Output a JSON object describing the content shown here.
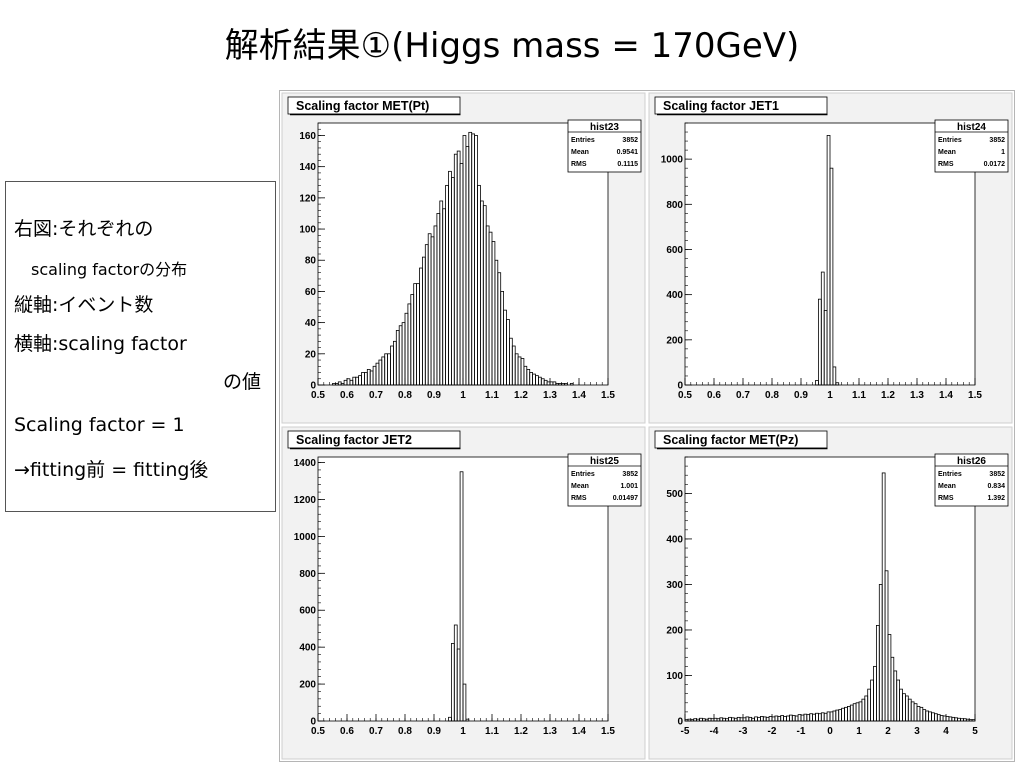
{
  "slide": {
    "title": "解析結果①(Higgs mass = 170GeV)",
    "notes": {
      "l1": "右図:それぞれの",
      "l2": "scaling factorの分布",
      "l3": "縦軸:イベント数",
      "l4": "横軸:scaling factor",
      "l5": "の値",
      "l6": "Scaling factor = 1",
      "l7": "→fitting前 = fitting後"
    }
  },
  "colors": {
    "pad_bg": "#f2f2f2",
    "frame_bg": "#ffffff",
    "line": "#000000",
    "canvas_bg": "#ffffff"
  },
  "chart_data": [
    {
      "type": "bar",
      "title": "Scaling factor MET(Pt)",
      "stats": {
        "name": "hist23",
        "entries": "3852",
        "mean": "0.9541",
        "rms": "0.1115"
      },
      "stat_labels": {
        "entries": "Entries",
        "mean": "Mean",
        "rms": "RMS"
      },
      "xlim": [
        0.5,
        1.5
      ],
      "ylim": [
        0,
        168
      ],
      "xticks": [
        0.5,
        0.6,
        0.7,
        0.8,
        0.9,
        1,
        1.1,
        1.2,
        1.3,
        1.4,
        1.5
      ],
      "xticklabels": [
        "0.5",
        "0.6",
        "0.7",
        "0.8",
        "0.9",
        "1",
        "1.1",
        "1.2",
        "1.3",
        "1.4",
        "1.5"
      ],
      "yticks": [
        0,
        20,
        40,
        60,
        80,
        100,
        120,
        140,
        160
      ],
      "yticklabels": [
        "0",
        "20",
        "40",
        "60",
        "80",
        "100",
        "120",
        "140",
        "160"
      ],
      "bin_start": 0.5,
      "bin_width": 0.01,
      "values": [
        0,
        0,
        0,
        0,
        0,
        1,
        1,
        2,
        1,
        3,
        4,
        3,
        5,
        5,
        6,
        8,
        8,
        10,
        9,
        12,
        14,
        16,
        18,
        20,
        20,
        25,
        28,
        35,
        38,
        40,
        46,
        52,
        58,
        65,
        65,
        75,
        82,
        90,
        97,
        95,
        102,
        110,
        118,
        113,
        128,
        137,
        133,
        148,
        150,
        142,
        160,
        153,
        162,
        161,
        160,
        128,
        118,
        115,
        102,
        98,
        92,
        80,
        72,
        60,
        48,
        42,
        30,
        25,
        20,
        18,
        17,
        12,
        10,
        8,
        7,
        6,
        5,
        4,
        3,
        2,
        2,
        2,
        1,
        1,
        1,
        1,
        0,
        1,
        0,
        0,
        0,
        0,
        0,
        0,
        0,
        0,
        0,
        0,
        0,
        0
      ]
    },
    {
      "type": "bar",
      "title": "Scaling factor JET1",
      "stats": {
        "name": "hist24",
        "entries": "3852",
        "mean": "1",
        "rms": "0.0172"
      },
      "stat_labels": {
        "entries": "Entries",
        "mean": "Mean",
        "rms": "RMS"
      },
      "xlim": [
        0.5,
        1.5
      ],
      "ylim": [
        0,
        1160
      ],
      "xticks": [
        0.5,
        0.6,
        0.7,
        0.8,
        0.9,
        1,
        1.1,
        1.2,
        1.3,
        1.4,
        1.5
      ],
      "xticklabels": [
        "0.5",
        "0.6",
        "0.7",
        "0.8",
        "0.9",
        "1",
        "1.1",
        "1.2",
        "1.3",
        "1.4",
        "1.5"
      ],
      "yticks": [
        0,
        200,
        400,
        600,
        800,
        1000
      ],
      "yticklabels": [
        "0",
        "200",
        "400",
        "600",
        "800",
        "1000"
      ],
      "bin_start": 0.95,
      "bin_width": 0.01,
      "values": [
        20,
        380,
        500,
        330,
        1105,
        960,
        80,
        10
      ]
    },
    {
      "type": "bar",
      "title": "Scaling factor JET2",
      "stats": {
        "name": "hist25",
        "entries": "3852",
        "mean": "1.001",
        "rms": "0.01497"
      },
      "stat_labels": {
        "entries": "Entries",
        "mean": "Mean",
        "rms": "RMS"
      },
      "xlim": [
        0.5,
        1.5
      ],
      "ylim": [
        0,
        1430
      ],
      "xticks": [
        0.5,
        0.6,
        0.7,
        0.8,
        0.9,
        1,
        1.1,
        1.2,
        1.3,
        1.4,
        1.5
      ],
      "xticklabels": [
        "0.5",
        "0.6",
        "0.7",
        "0.8",
        "0.9",
        "1",
        "1.1",
        "1.2",
        "1.3",
        "1.4",
        "1.5"
      ],
      "yticks": [
        0,
        200,
        400,
        600,
        800,
        1000,
        1200,
        1400
      ],
      "yticklabels": [
        "0",
        "200",
        "400",
        "600",
        "800",
        "1000",
        "1200",
        "1400"
      ],
      "bin_start": 0.95,
      "bin_width": 0.01,
      "values": [
        20,
        420,
        520,
        390,
        1350,
        200,
        10
      ]
    },
    {
      "type": "bar",
      "title": "Scaling factor MET(Pz)",
      "stats": {
        "name": "hist26",
        "entries": "3852",
        "mean": "0.834",
        "rms": "1.392"
      },
      "stat_labels": {
        "entries": "Entries",
        "mean": "Mean",
        "rms": "RMS"
      },
      "xlim": [
        -5,
        5
      ],
      "ylim": [
        0,
        580
      ],
      "xticks": [
        -5,
        -4,
        -3,
        -2,
        -1,
        0,
        1,
        2,
        3,
        4,
        5
      ],
      "xticklabels": [
        "-5",
        "-4",
        "-3",
        "-2",
        "-1",
        "0",
        "1",
        "2",
        "3",
        "4",
        "5"
      ],
      "yticks": [
        0,
        100,
        200,
        300,
        400,
        500
      ],
      "yticklabels": [
        "0",
        "100",
        "200",
        "300",
        "400",
        "500"
      ],
      "bin_start": -5,
      "bin_width": 0.1,
      "values": [
        3,
        4,
        3,
        5,
        4,
        6,
        5,
        4,
        6,
        5,
        6,
        5,
        7,
        6,
        5,
        8,
        7,
        6,
        8,
        7,
        7,
        9,
        8,
        6,
        9,
        8,
        10,
        9,
        8,
        10,
        9,
        11,
        10,
        12,
        10,
        11,
        13,
        12,
        11,
        14,
        13,
        15,
        14,
        16,
        15,
        17,
        16,
        18,
        17,
        20,
        20,
        22,
        24,
        25,
        28,
        30,
        32,
        35,
        38,
        40,
        42,
        48,
        55,
        70,
        90,
        120,
        210,
        300,
        545,
        330,
        190,
        140,
        110,
        90,
        70,
        60,
        55,
        48,
        42,
        38,
        32,
        30,
        25,
        22,
        20,
        18,
        16,
        14,
        12,
        11,
        10,
        9,
        8,
        7,
        6,
        5,
        5,
        4,
        3,
        3
      ]
    }
  ]
}
